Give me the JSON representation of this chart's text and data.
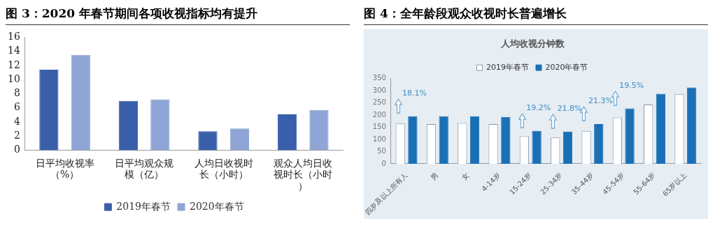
{
  "chart_data": [
    {
      "type": "bar",
      "title": "图 3：2020 年春节期间各项收视指标均有提升",
      "categories": [
        "日平均收视率（%）",
        "日平均观众规模（亿）",
        "人均日收视时长（小时）",
        "观众人均日收视时长（小时）"
      ],
      "series": [
        {
          "name": "2019年春节",
          "color": "#3a5faa",
          "values": [
            11.4,
            7.0,
            2.7,
            5.1
          ]
        },
        {
          "name": "2020年春节",
          "color": "#8fa5d6",
          "values": [
            13.5,
            7.2,
            3.1,
            5.7
          ]
        }
      ],
      "ylim": [
        0,
        16
      ],
      "yticks": [
        0,
        2,
        4,
        6,
        8,
        10,
        12,
        14,
        16
      ],
      "legend": "bottom"
    },
    {
      "type": "bar",
      "title": "图 4：全年龄段观众收视时长普遍增长",
      "subtitle": "人均收视分钟数",
      "categories": [
        "四岁及以上所有人",
        "男",
        "女",
        "4-14岁",
        "15-24岁",
        "25-34岁",
        "35-44岁",
        "45-54岁",
        "55-64岁",
        "65岁以上"
      ],
      "series": [
        {
          "name": "2019年春节",
          "color": "#ffffff",
          "values": [
            165,
            163,
            167,
            163,
            113,
            108,
            135,
            190,
            243,
            285
          ]
        },
        {
          "name": "2020年春节",
          "color": "#1a6fb5",
          "values": [
            195,
            195,
            195,
            192,
            135,
            132,
            163,
            227,
            287,
            313
          ]
        }
      ],
      "ylim": [
        0,
        350
      ],
      "yticks": [
        0,
        50,
        100,
        150,
        200,
        250,
        300,
        350
      ],
      "legend": "top",
      "annotations": [
        {
          "text": "18.1%",
          "x": "四岁及以上所有人",
          "y": 195
        },
        {
          "text": "19.2%",
          "x": "15-24岁",
          "y": 135
        },
        {
          "text": "21.8%",
          "x": "25-34岁",
          "y": 132
        },
        {
          "text": "21.3%",
          "x": "35-44岁",
          "y": 163
        },
        {
          "text": "19.5%",
          "x": "45-54岁",
          "y": 227
        }
      ]
    }
  ]
}
